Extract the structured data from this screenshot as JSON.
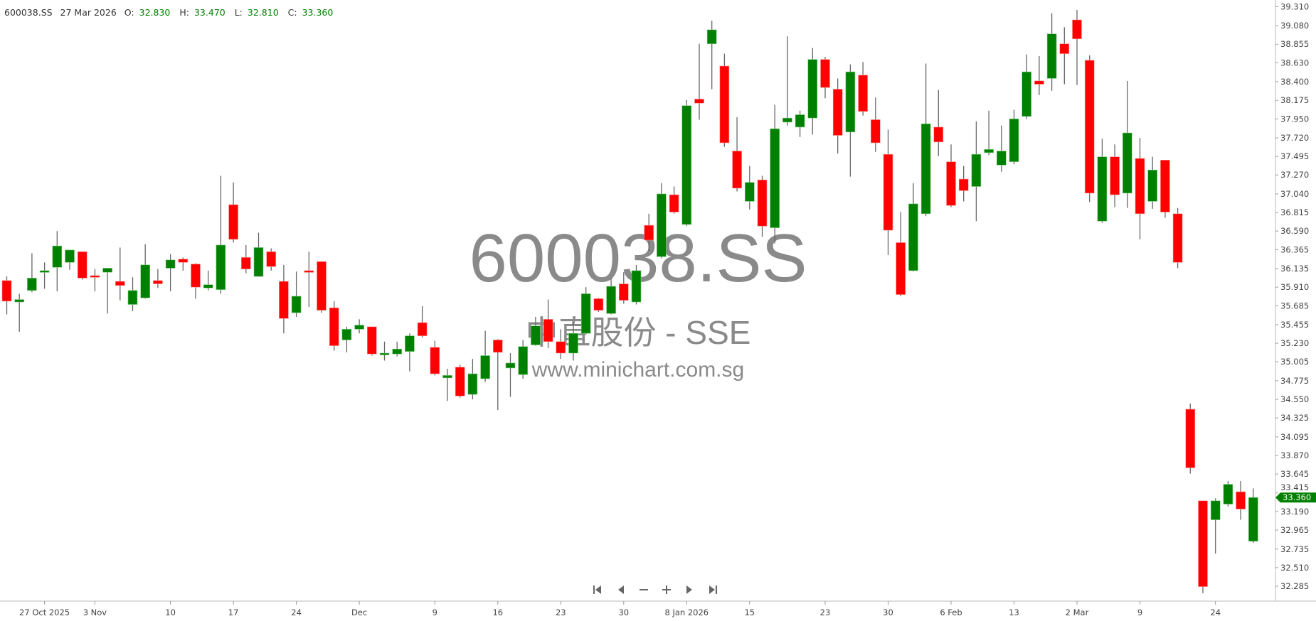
{
  "header": {
    "symbol": "600038.SS",
    "date": "27 Mar 2026",
    "o_label": "O:",
    "open": "32.830",
    "h_label": "H:",
    "high": "33.470",
    "l_label": "L:",
    "low": "32.810",
    "c_label": "C:",
    "close": "33.360"
  },
  "watermark": {
    "symbol": "600038.SS",
    "name": "中直股份 - SSE",
    "site": "www.minichart.com.sg"
  },
  "navigation": [
    {
      "name": "first-icon"
    },
    {
      "name": "previous-icon"
    },
    {
      "name": "zoom-out-icon"
    },
    {
      "name": "zoom-in-icon"
    },
    {
      "name": "next-icon"
    },
    {
      "name": "last-icon"
    }
  ],
  "colors": {
    "up": "#008000",
    "down": "#ff0000",
    "wick": "#666666",
    "axis": "#bbbbbb",
    "last_price_tag": "#008000"
  },
  "chart_data": {
    "type": "candlestick",
    "ylim": [
      32.285,
      39.31
    ],
    "yticks": [
      "39.310",
      "39.080",
      "38.855",
      "38.630",
      "38.400",
      "38.175",
      "37.950",
      "37.720",
      "37.495",
      "37.270",
      "37.040",
      "36.815",
      "36.590",
      "36.365",
      "36.135",
      "35.910",
      "35.685",
      "35.455",
      "35.230",
      "35.005",
      "34.775",
      "34.550",
      "34.325",
      "34.095",
      "33.870",
      "33.645",
      "33.415",
      "33.190",
      "32.965",
      "32.735",
      "32.510",
      "32.285"
    ],
    "last_price": "33.360",
    "xticks": [
      {
        "label": "27 Oct 2025",
        "at_candle": 3
      },
      {
        "label": "3 Nov",
        "at_candle": 7
      },
      {
        "label": "10",
        "at_candle": 13
      },
      {
        "label": "17",
        "at_candle": 18
      },
      {
        "label": "24",
        "at_candle": 23
      },
      {
        "label": "Dec",
        "at_candle": 28
      },
      {
        "label": "9",
        "at_candle": 34
      },
      {
        "label": "16",
        "at_candle": 39
      },
      {
        "label": "23",
        "at_candle": 44
      },
      {
        "label": "30",
        "at_candle": 49
      },
      {
        "label": "8 Jan 2026",
        "at_candle": 54
      },
      {
        "label": "15",
        "at_candle": 59
      },
      {
        "label": "23",
        "at_candle": 65
      },
      {
        "label": "30",
        "at_candle": 70
      },
      {
        "label": "6 Feb",
        "at_candle": 75
      },
      {
        "label": "13",
        "at_candle": 80
      },
      {
        "label": "2 Mar",
        "at_candle": 85
      },
      {
        "label": "9",
        "at_candle": 90
      },
      {
        "label": "24",
        "at_candle": 96
      }
    ],
    "ohlc": [
      [
        35.99,
        36.04,
        35.58,
        35.74
      ],
      [
        35.73,
        35.83,
        35.37,
        35.76
      ],
      [
        35.87,
        36.32,
        35.85,
        36.02
      ],
      [
        36.09,
        36.21,
        35.89,
        36.11
      ],
      [
        36.15,
        36.59,
        35.86,
        36.41
      ],
      [
        36.21,
        36.36,
        36.12,
        36.36
      ],
      [
        36.34,
        36.34,
        36.0,
        36.02
      ],
      [
        36.05,
        36.13,
        35.86,
        36.04
      ],
      [
        36.09,
        36.14,
        35.59,
        36.14
      ],
      [
        35.98,
        36.39,
        35.75,
        35.93
      ],
      [
        35.7,
        36.03,
        35.62,
        35.87
      ],
      [
        35.78,
        36.43,
        35.77,
        36.18
      ],
      [
        35.99,
        36.13,
        35.9,
        35.95
      ],
      [
        36.14,
        36.31,
        35.86,
        36.24
      ],
      [
        36.25,
        36.27,
        36.11,
        36.21
      ],
      [
        36.19,
        36.2,
        35.77,
        35.91
      ],
      [
        35.9,
        36.11,
        35.87,
        35.94
      ],
      [
        35.88,
        37.26,
        35.83,
        36.42
      ],
      [
        36.91,
        37.18,
        36.45,
        36.49
      ],
      [
        36.27,
        36.42,
        36.08,
        36.13
      ],
      [
        36.04,
        36.57,
        36.04,
        36.39
      ],
      [
        36.34,
        36.38,
        36.11,
        36.16
      ],
      [
        35.98,
        36.18,
        35.35,
        35.53
      ],
      [
        35.6,
        36.1,
        35.55,
        35.8
      ],
      [
        36.11,
        36.34,
        35.67,
        36.09
      ],
      [
        36.22,
        36.22,
        35.6,
        35.63
      ],
      [
        35.66,
        35.74,
        35.14,
        35.2
      ],
      [
        35.27,
        35.43,
        35.12,
        35.4
      ],
      [
        35.4,
        35.52,
        35.35,
        35.45
      ],
      [
        35.43,
        35.43,
        35.08,
        35.1
      ],
      [
        35.09,
        35.25,
        35.02,
        35.11
      ],
      [
        35.1,
        35.25,
        35.07,
        35.16
      ],
      [
        35.13,
        35.35,
        34.89,
        35.32
      ],
      [
        35.48,
        35.68,
        35.3,
        35.32
      ],
      [
        35.18,
        35.26,
        34.84,
        34.86
      ],
      [
        34.81,
        34.92,
        34.53,
        34.84
      ],
      [
        34.94,
        34.97,
        34.57,
        34.59
      ],
      [
        34.61,
        35.04,
        34.55,
        34.86
      ],
      [
        34.8,
        35.38,
        34.76,
        35.08
      ],
      [
        35.27,
        35.28,
        34.42,
        35.12
      ],
      [
        34.93,
        35.11,
        34.58,
        34.99
      ],
      [
        34.85,
        35.27,
        34.8,
        35.19
      ],
      [
        35.21,
        35.55,
        35.2,
        35.44
      ],
      [
        35.52,
        35.76,
        35.17,
        35.25
      ],
      [
        35.25,
        35.4,
        35.04,
        35.11
      ],
      [
        35.11,
        35.48,
        35.02,
        35.35
      ],
      [
        35.35,
        35.91,
        35.33,
        35.83
      ],
      [
        35.77,
        35.78,
        35.61,
        35.63
      ],
      [
        35.59,
        36.02,
        35.58,
        35.92
      ],
      [
        35.95,
        36.09,
        35.71,
        35.75
      ],
      [
        35.73,
        36.18,
        35.7,
        36.11
      ],
      [
        36.66,
        36.8,
        36.35,
        36.48
      ],
      [
        36.28,
        37.17,
        36.26,
        37.04
      ],
      [
        37.03,
        37.13,
        36.8,
        36.82
      ],
      [
        36.67,
        38.18,
        36.65,
        38.11
      ],
      [
        38.19,
        38.86,
        37.94,
        38.14
      ],
      [
        38.86,
        39.14,
        38.31,
        39.03
      ],
      [
        38.59,
        38.74,
        37.61,
        37.66
      ],
      [
        37.56,
        37.97,
        37.07,
        37.11
      ],
      [
        36.95,
        37.38,
        36.85,
        37.18
      ],
      [
        37.21,
        37.26,
        36.52,
        36.65
      ],
      [
        36.63,
        38.12,
        36.44,
        37.83
      ],
      [
        37.91,
        38.95,
        37.87,
        37.96
      ],
      [
        37.85,
        38.05,
        37.73,
        38.0
      ],
      [
        37.96,
        38.81,
        37.76,
        38.67
      ],
      [
        38.67,
        38.7,
        38.2,
        38.33
      ],
      [
        38.31,
        38.44,
        37.53,
        37.75
      ],
      [
        37.79,
        38.61,
        37.25,
        38.52
      ],
      [
        38.48,
        38.64,
        37.99,
        38.04
      ],
      [
        37.94,
        38.21,
        37.55,
        37.66
      ],
      [
        37.52,
        37.82,
        36.3,
        36.6
      ],
      [
        36.45,
        36.82,
        35.8,
        35.82
      ],
      [
        36.11,
        37.17,
        36.1,
        36.92
      ],
      [
        36.8,
        38.62,
        36.77,
        37.89
      ],
      [
        37.85,
        38.3,
        37.5,
        37.67
      ],
      [
        37.43,
        37.64,
        36.88,
        36.9
      ],
      [
        37.22,
        37.38,
        36.95,
        37.08
      ],
      [
        37.13,
        37.92,
        36.71,
        37.52
      ],
      [
        37.54,
        38.05,
        37.51,
        37.58
      ],
      [
        37.39,
        37.87,
        37.31,
        37.56
      ],
      [
        37.43,
        38.06,
        37.4,
        37.95
      ],
      [
        37.98,
        38.73,
        37.95,
        38.52
      ],
      [
        38.41,
        38.71,
        38.24,
        38.37
      ],
      [
        38.44,
        39.23,
        38.29,
        38.98
      ],
      [
        38.86,
        39.06,
        38.37,
        38.74
      ],
      [
        39.15,
        39.27,
        38.36,
        38.92
      ],
      [
        38.66,
        38.72,
        36.94,
        37.05
      ],
      [
        36.71,
        37.71,
        36.69,
        37.49
      ],
      [
        37.49,
        37.64,
        36.88,
        37.03
      ],
      [
        37.05,
        38.41,
        36.87,
        37.78
      ],
      [
        37.47,
        37.72,
        36.49,
        36.8
      ],
      [
        36.95,
        37.49,
        36.86,
        37.33
      ],
      [
        37.45,
        37.45,
        36.75,
        36.82
      ],
      [
        36.8,
        36.87,
        36.14,
        36.21
      ],
      [
        34.43,
        34.5,
        33.65,
        33.72
      ],
      [
        33.32,
        33.32,
        32.2,
        32.28
      ],
      [
        33.09,
        33.35,
        32.68,
        33.32
      ],
      [
        33.28,
        33.56,
        33.25,
        33.52
      ],
      [
        33.43,
        33.56,
        33.09,
        33.22
      ],
      [
        32.83,
        33.47,
        32.81,
        33.36
      ]
    ]
  }
}
